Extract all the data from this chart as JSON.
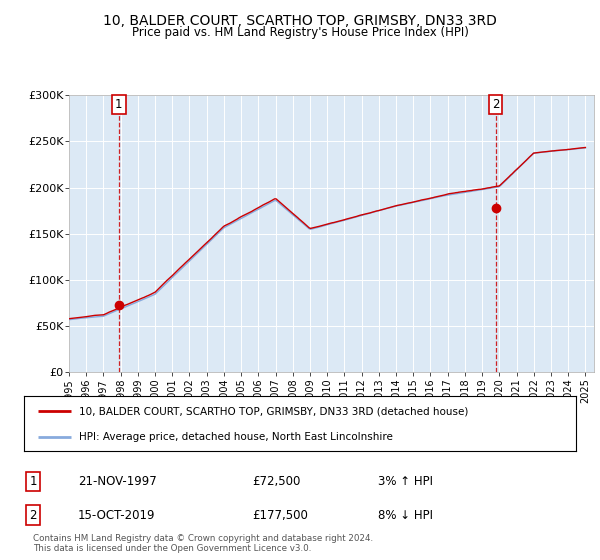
{
  "title": "10, BALDER COURT, SCARTHO TOP, GRIMSBY, DN33 3RD",
  "subtitle": "Price paid vs. HM Land Registry's House Price Index (HPI)",
  "background_color": "#dce9f5",
  "y_ticks": [
    0,
    50000,
    100000,
    150000,
    200000,
    250000,
    300000
  ],
  "y_tick_labels": [
    "£0",
    "£50K",
    "£100K",
    "£150K",
    "£200K",
    "£250K",
    "£300K"
  ],
  "x_start_year": 1995,
  "x_end_year": 2025,
  "sale1_date": 1997.9,
  "sale1_price": 72500,
  "sale2_date": 2019.79,
  "sale2_price": 177500,
  "sale1_info": "21-NOV-1997",
  "sale1_price_str": "£72,500",
  "sale1_hpi": "3% ↑ HPI",
  "sale2_info": "15-OCT-2019",
  "sale2_price_str": "£177,500",
  "sale2_hpi": "8% ↓ HPI",
  "legend_line1": "10, BALDER COURT, SCARTHO TOP, GRIMSBY, DN33 3RD (detached house)",
  "legend_line2": "HPI: Average price, detached house, North East Lincolnshire",
  "footer": "Contains HM Land Registry data © Crown copyright and database right 2024.\nThis data is licensed under the Open Government Licence v3.0.",
  "line_color": "#cc0000",
  "hpi_color": "#88aadd",
  "vline_color": "#cc0000",
  "grid_color": "#ffffff"
}
